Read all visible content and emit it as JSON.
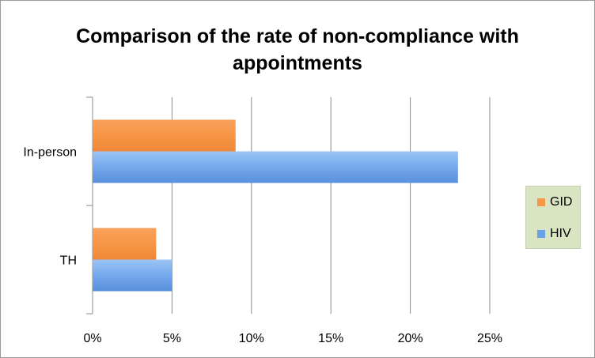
{
  "chart_data": {
    "type": "bar",
    "orientation": "horizontal",
    "title": "Comparison of the rate of non-compliance with appointments",
    "xlabel": "",
    "ylabel": "",
    "categories": [
      "In-person",
      "TH"
    ],
    "series": [
      {
        "name": "GID",
        "values": [
          9,
          4
        ],
        "color": "#f79646"
      },
      {
        "name": "HIV",
        "values": [
          23,
          5
        ],
        "color": "#6aa0e6"
      }
    ],
    "x_ticks": [
      "0%",
      "5%",
      "10%",
      "15%",
      "20%",
      "25%"
    ],
    "xlim": [
      0,
      25
    ],
    "unit": "%",
    "grid": "vertical",
    "legend_position": "right",
    "legend_background": "#d9e4c3"
  }
}
